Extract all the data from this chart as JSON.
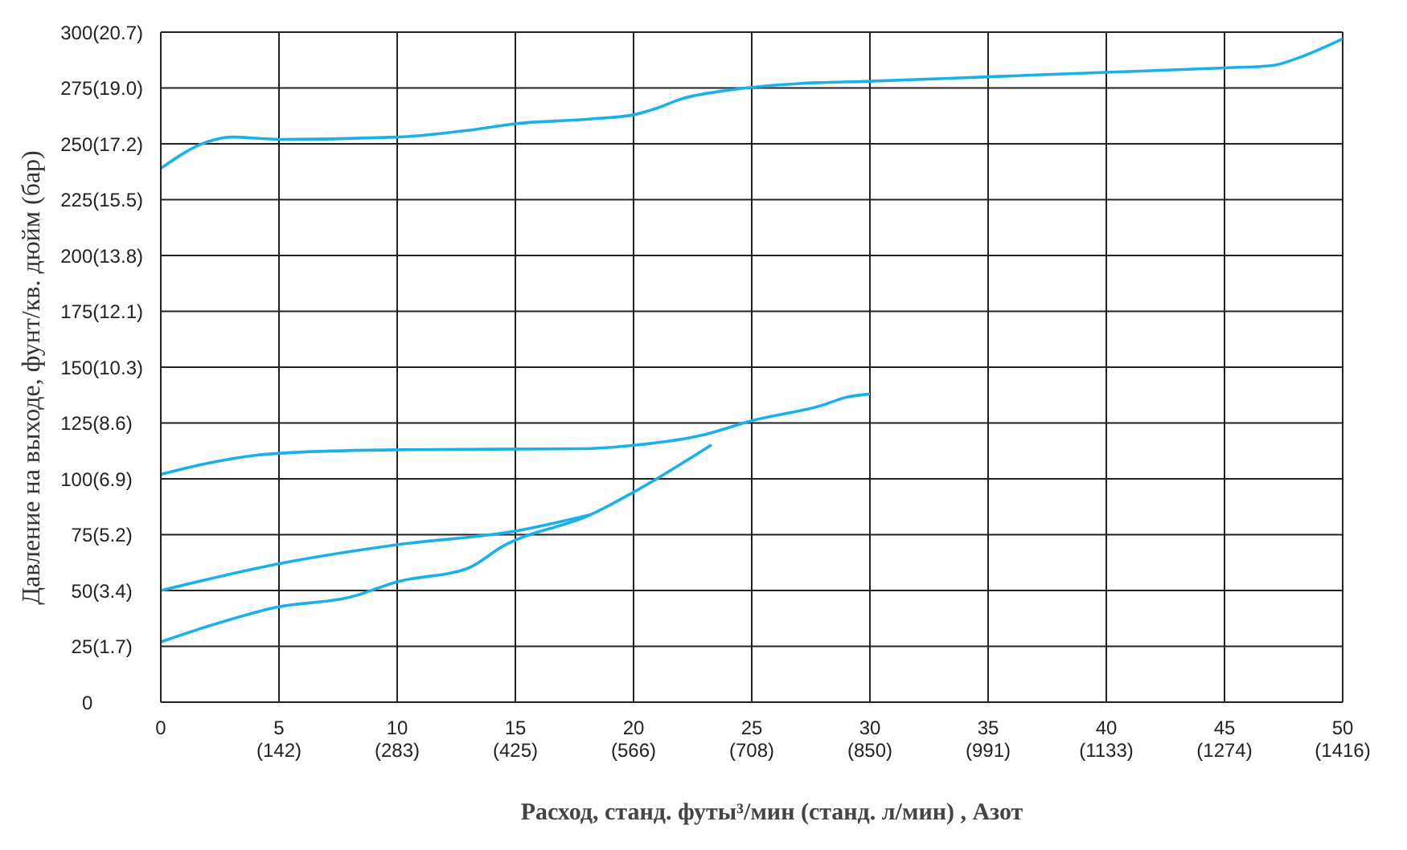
{
  "chart_data": {
    "type": "line",
    "xlabel": "Расход, станд. футы³/мин (станд. л/мин) , Азот",
    "ylabel": "Давление на выходе, фунт/кв. дюйм (бар)",
    "series": [
      {
        "color": "#1ab0e8",
        "x": [
          0,
          2,
          3,
          5,
          10,
          13,
          15,
          18,
          20,
          21,
          22,
          24,
          27,
          30,
          35,
          40,
          45,
          47,
          48,
          50
        ],
        "values": [
          239,
          251,
          253,
          252,
          253,
          256,
          259,
          261,
          263,
          266,
          270,
          274,
          277,
          278,
          280,
          282,
          284,
          285,
          288,
          297
        ]
      },
      {
        "color": "#1ab0e8",
        "x": [
          0,
          2,
          4,
          6,
          10,
          18,
          20,
          23,
          25,
          28,
          29,
          30
        ],
        "values": [
          102,
          107,
          110.5,
          112,
          113,
          113.5,
          115,
          119.8,
          126,
          133,
          136.5,
          138
        ]
      },
      {
        "color": "#1ab0e8",
        "x": [
          0,
          4.9,
          10,
          15,
          18.2
        ],
        "values": [
          50,
          61.8,
          70.5,
          76.6,
          84
        ]
      },
      {
        "color": "#1ab0e8",
        "x": [
          0,
          2,
          4.9,
          8,
          10,
          13,
          14.5,
          18.2,
          20,
          23.3
        ],
        "values": [
          27,
          34,
          42.5,
          47,
          53.9,
          60,
          70,
          84,
          94,
          115.2
        ]
      }
    ],
    "xlim": [
      0,
      50
    ],
    "xticks": [
      0,
      5,
      10,
      15,
      20,
      25,
      30,
      35,
      40,
      45,
      50
    ],
    "x2lim": [
      0,
      1416
    ],
    "x2ticks": [
      {
        "value": 142,
        "label": "(142)"
      },
      {
        "value": 283,
        "label": "(283)"
      },
      {
        "value": 425,
        "label": "(425)"
      },
      {
        "value": 566,
        "label": "(566)"
      },
      {
        "value": 708,
        "label": "(708)"
      },
      {
        "value": 850,
        "label": "(850)"
      },
      {
        "value": 991,
        "label": "(991)"
      },
      {
        "value": 1133,
        "label": "(1133)"
      },
      {
        "value": 1274,
        "label": "(1274)"
      },
      {
        "value": 1416,
        "label": "(1416)"
      }
    ],
    "ylim": [
      0,
      300
    ],
    "yticks": [
      0,
      25,
      50,
      75,
      100,
      125,
      150,
      175,
      200,
      225,
      250,
      275,
      300
    ],
    "y2lim": [
      0,
      20.7
    ],
    "y2ticks": [
      {
        "value": 1.7,
        "label": "(1.7)"
      },
      {
        "value": 3.4,
        "label": "(3.4)"
      },
      {
        "value": 5.2,
        "label": "(5.2)"
      },
      {
        "value": 6.9,
        "label": "(6.9)"
      },
      {
        "value": 8.6,
        "label": "(8.6)"
      },
      {
        "value": 10.3,
        "label": "(10.3)"
      },
      {
        "value": 12.1,
        "label": "(12.1)"
      },
      {
        "value": 13.8,
        "label": "(13.8)"
      },
      {
        "value": 15.5,
        "label": "(15.5)"
      },
      {
        "value": 17.2,
        "label": "(17.2)"
      },
      {
        "value": 19,
        "label": "(19.0)"
      },
      {
        "value": 20.7,
        "label": "(20.7)"
      }
    ],
    "grid": true,
    "legend": false,
    "marker": "none",
    "line_style": "solid"
  }
}
